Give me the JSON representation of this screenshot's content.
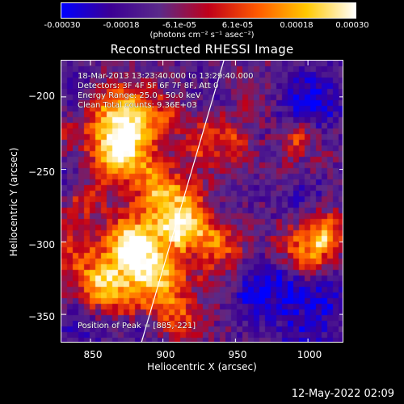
{
  "colorbar": {
    "ticks": [
      "-0.00030",
      "-0.00018",
      "-6.1e-05",
      "6.1e-05",
      "0.00018",
      "0.00030"
    ],
    "unit_label": "(photons cm⁻² s⁻¹ asec⁻²)",
    "colors": [
      "#0000ff",
      "#3c0094",
      "#5a2a8a",
      "#c0001a",
      "#ff5a00",
      "#ffc800",
      "#ffffff"
    ]
  },
  "title": "Reconstructed RHESSI Image",
  "info": {
    "time_range": "18-Mar-2013 13:23:40.000 to 13:29:40.000",
    "detectors": "Detectors: 3F 4F 5F 6F 7F 8F, Att 0",
    "energy_range": "Energy Range: 25.0 - 50.0 keV",
    "clean_totals": "Clean     Total counts: 9.36E+03",
    "peak_position": "Position of Peak = [885,-221]"
  },
  "chart_data": {
    "type": "heatmap",
    "title": "Reconstructed RHESSI Image",
    "xlabel": "Heliocentric X (arcsec)",
    "ylabel": "Heliocentric Y (arcsec)",
    "xlim": [
      830,
      1025
    ],
    "ylim": [
      -370,
      -175
    ],
    "x_ticks": [
      850,
      900,
      950,
      1000
    ],
    "y_ticks": [
      -200,
      -250,
      -300,
      -350
    ],
    "x_tick_labels": [
      "850",
      "900",
      "950",
      "1000"
    ],
    "y_tick_labels": [
      "−200",
      "−250",
      "−300",
      "−350"
    ],
    "color_range": [
      -0.0003,
      0.0003
    ],
    "peak": [
      885,
      -221
    ],
    "limb_line": [
      [
        942,
        -175
      ],
      [
        885,
        -370
      ]
    ],
    "bright_regions": [
      {
        "x": 875,
        "y": -215,
        "level": 0.95,
        "size": 18
      },
      {
        "x": 868,
        "y": -240,
        "level": 0.85,
        "size": 14
      },
      {
        "x": 900,
        "y": -265,
        "level": 0.8,
        "size": 16
      },
      {
        "x": 915,
        "y": -290,
        "level": 0.85,
        "size": 14
      },
      {
        "x": 880,
        "y": -300,
        "level": 0.8,
        "size": 14
      },
      {
        "x": 895,
        "y": -325,
        "level": 0.75,
        "size": 16
      },
      {
        "x": 860,
        "y": -330,
        "level": 0.7,
        "size": 12
      },
      {
        "x": 845,
        "y": -270,
        "level": 0.6,
        "size": 12
      },
      {
        "x": 940,
        "y": -300,
        "level": 0.6,
        "size": 14
      },
      {
        "x": 955,
        "y": -240,
        "level": 0.55,
        "size": 12
      },
      {
        "x": 1010,
        "y": -295,
        "level": 0.75,
        "size": 12
      },
      {
        "x": 1000,
        "y": -315,
        "level": 0.65,
        "size": 10
      },
      {
        "x": 935,
        "y": -215,
        "level": 0.5,
        "size": 10
      },
      {
        "x": 985,
        "y": -255,
        "level": 0.45,
        "size": 10
      },
      {
        "x": 905,
        "y": -350,
        "level": 0.55,
        "size": 12
      }
    ],
    "dark_regions": [
      {
        "x": 1000,
        "y": -345,
        "size": 20
      },
      {
        "x": 845,
        "y": -355,
        "size": 14
      },
      {
        "x": 1005,
        "y": -200,
        "size": 16
      },
      {
        "x": 960,
        "y": -335,
        "size": 14
      },
      {
        "x": 840,
        "y": -195,
        "size": 12
      }
    ]
  },
  "timestamp": "12-May-2022 02:09"
}
